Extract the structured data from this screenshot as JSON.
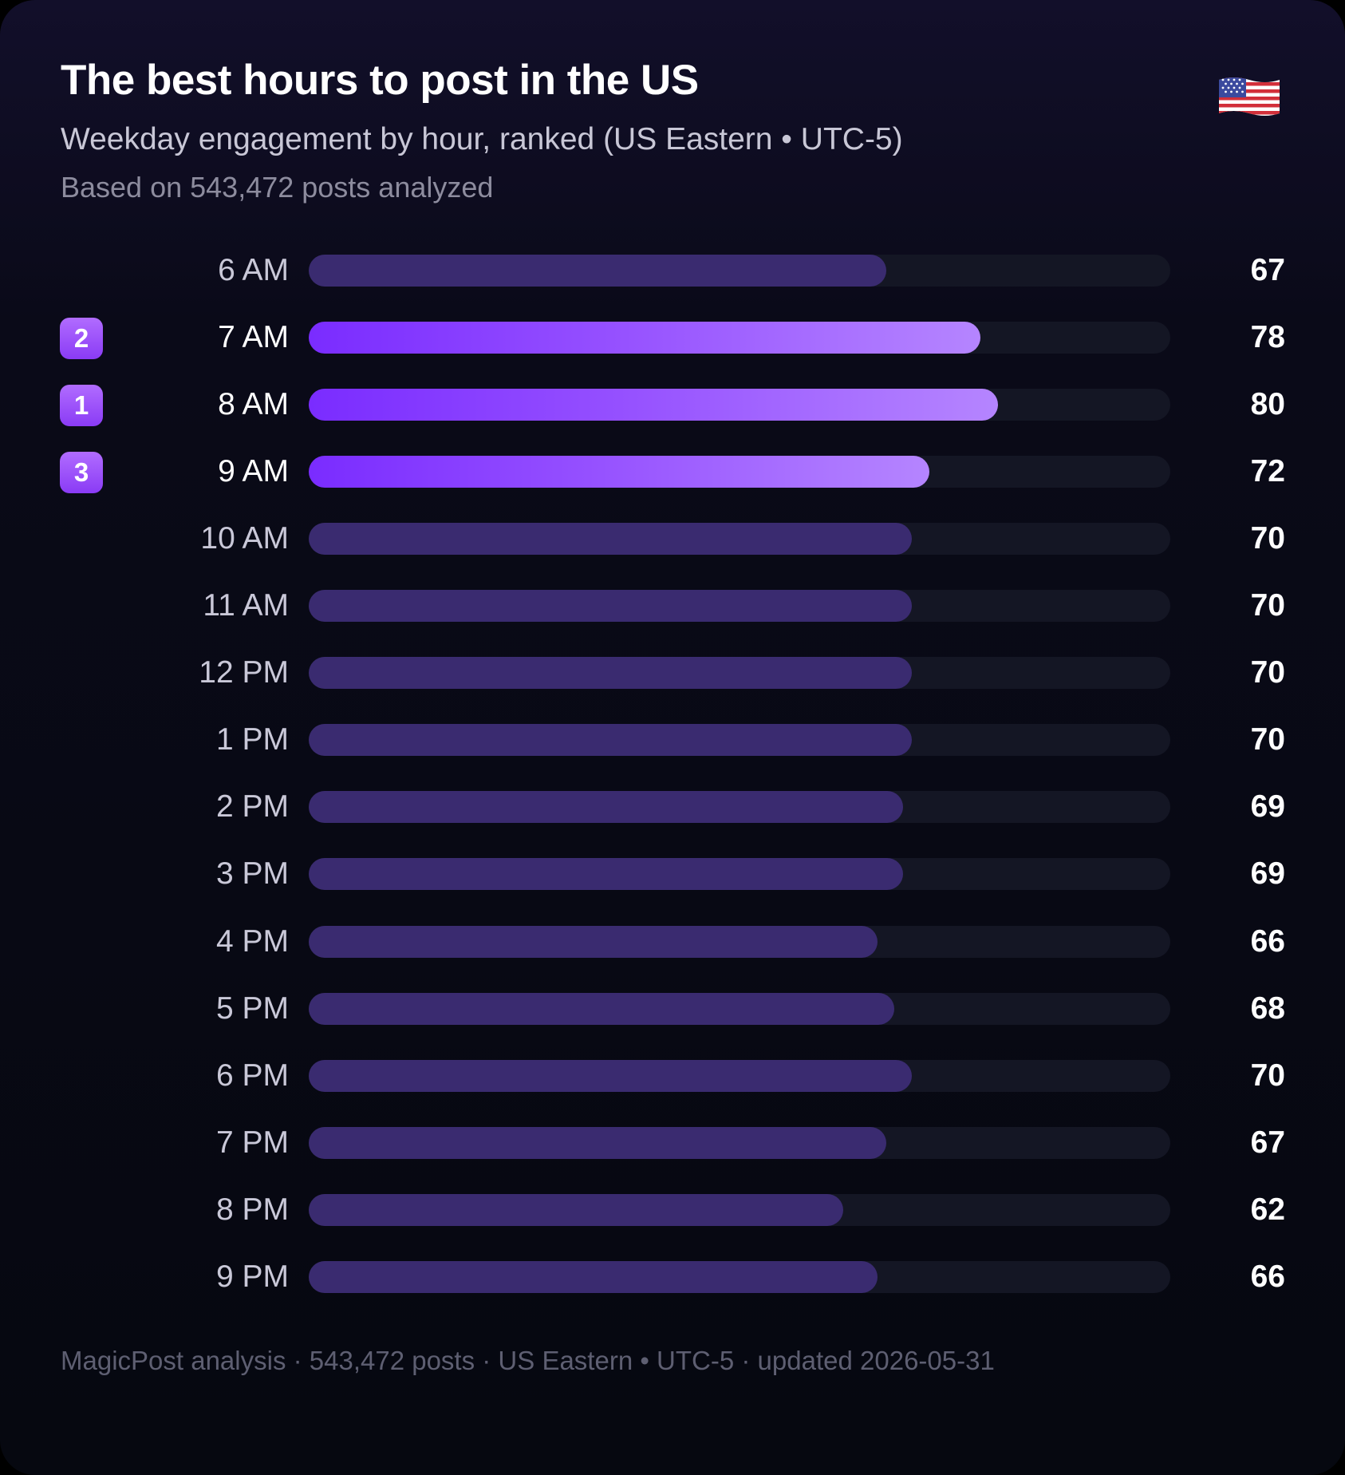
{
  "header": {
    "title": "The best hours to post in the US",
    "subtitle": "Weekday engagement by hour, ranked (US Eastern • UTC-5)",
    "meta": "Based on 543,472 posts analyzed",
    "flag_icon": "us-flag-icon"
  },
  "footer": {
    "text": "MagicPost analysis · 543,472 posts · US Eastern • UTC-5 · updated 2026-05-31"
  },
  "colors": {
    "highlight_start": "#7a2cff",
    "highlight_end": "#b585ff",
    "bar": "#3a2b70",
    "track": "#141624"
  },
  "chart_data": {
    "type": "bar",
    "orientation": "horizontal",
    "title": "The best hours to post in the US",
    "xlim": [
      0,
      100
    ],
    "grid": false,
    "legend": "none",
    "categories": [
      "6 AM",
      "7 AM",
      "8 AM",
      "9 AM",
      "10 AM",
      "11 AM",
      "12 PM",
      "1 PM",
      "2 PM",
      "3 PM",
      "4 PM",
      "5 PM",
      "6 PM",
      "7 PM",
      "8 PM",
      "9 PM"
    ],
    "values": [
      67,
      78,
      80,
      72,
      70,
      70,
      70,
      70,
      69,
      69,
      66,
      68,
      70,
      67,
      62,
      66
    ],
    "ranks": [
      "",
      "2",
      "1",
      "3",
      "",
      "",
      "",
      "",
      "",
      "",
      "",
      "",
      "",
      "",
      "",
      ""
    ]
  }
}
